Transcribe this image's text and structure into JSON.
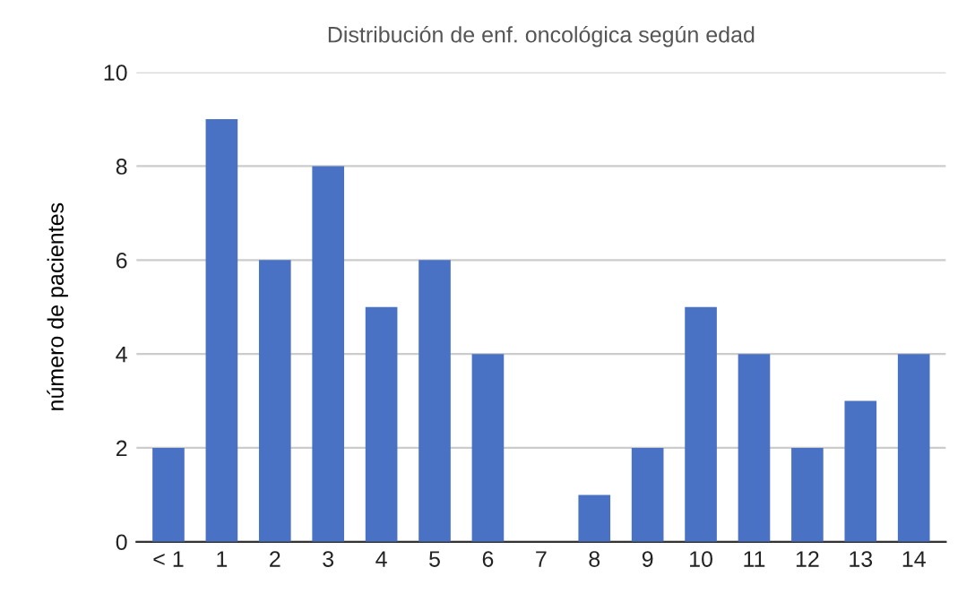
{
  "chart_data": {
    "type": "bar",
    "title": "Distribución de enf. oncológica según edad",
    "ylabel": "número de pacientes",
    "categories": [
      "< 1",
      "1",
      "2",
      "3",
      "4",
      "5",
      "6",
      "7",
      "8",
      "9",
      "10",
      "11",
      "12",
      "13",
      "14"
    ],
    "values": [
      2,
      9,
      6,
      8,
      5,
      6,
      4,
      0,
      1,
      2,
      5,
      4,
      2,
      3,
      4
    ],
    "color": "#4a72c4",
    "ylim": [
      0,
      10
    ],
    "yticks": [
      0,
      2,
      4,
      6,
      8,
      10
    ],
    "grid": "y"
  }
}
